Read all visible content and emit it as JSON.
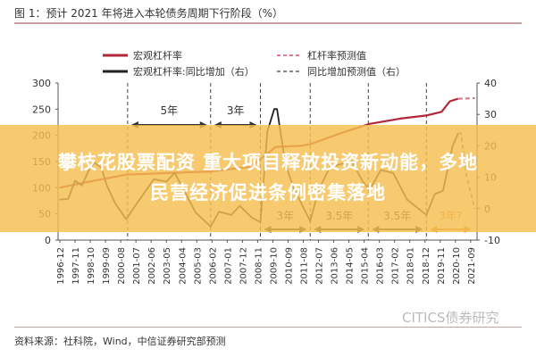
{
  "title": "图 1：预计 2021 年将进入本轮债务周期下行阶段（%）",
  "source": "资料来源：社科院，Wind，中信证券研究部预测",
  "watermark": "CITICS债券研究",
  "banner": {
    "line1": "攀枝花股票配资 重大项目释放投资新动能，多地",
    "line2": "民营经济促进条例密集落地",
    "color": "#f5be50"
  },
  "chart_data": {
    "type": "line",
    "title": "预计 2021 年将进入本轮债务周期下行阶段（%）",
    "x_ticks": [
      "1996-12",
      "1997-11",
      "1998-10",
      "1999-09",
      "2000-08",
      "2001-07",
      "2002-06",
      "2003-05",
      "2004-04",
      "2005-03",
      "2006-02",
      "2007-01",
      "2007-12",
      "2008-11",
      "2009-10",
      "2010-09",
      "2011-08",
      "2012-07",
      "2013-06",
      "2014-05",
      "2015-04",
      "2016-03",
      "2017-02",
      "2018-01",
      "2018-12",
      "2019-11",
      "2020-10",
      "2021-09"
    ],
    "y_left": {
      "range": [
        0,
        300
      ],
      "ticks": [
        "300",
        "250",
        "200",
        "150",
        "100",
        "50",
        "0"
      ]
    },
    "y_right": {
      "range": [
        -10,
        40
      ],
      "ticks": [
        "40",
        "30",
        "20",
        "10",
        "0",
        "-10"
      ]
    },
    "legend": {
      "placement": "top",
      "entries": [
        "宏观杠杆率",
        "杠杆率预测值",
        "宏观杠杆率:同比增加（右）",
        "同比增加预测值（右）"
      ]
    },
    "series": [
      {
        "name": "宏观杠杆率",
        "axis": "left",
        "color": "#b0283a",
        "style": "solid",
        "points": [
          [
            "1996-12",
            100
          ],
          [
            "1998-06",
            110
          ],
          [
            "2000-12",
            125
          ],
          [
            "2003-06",
            128
          ],
          [
            "2006-01",
            131
          ],
          [
            "2008-06",
            140
          ],
          [
            "2009-06",
            165
          ],
          [
            "2009-12",
            178
          ],
          [
            "2011-06",
            180
          ],
          [
            "2012-01",
            183
          ],
          [
            "2013-12",
            205
          ],
          [
            "2015-08",
            222
          ],
          [
            "2017-06",
            232
          ],
          [
            "2019-01",
            238
          ],
          [
            "2019-12",
            245
          ],
          [
            "2020-06",
            265
          ],
          [
            "2020-12",
            270
          ]
        ]
      },
      {
        "name": "杠杆率预测值",
        "axis": "left",
        "color": "#e07a90",
        "style": "dashed",
        "points": [
          [
            "2020-12",
            270
          ],
          [
            "2021-12",
            271
          ]
        ]
      },
      {
        "name": "宏观杠杆率:同比增加（右）",
        "axis": "right",
        "color": "#222222",
        "style": "solid",
        "points": [
          [
            "1996-12",
            2.9
          ],
          [
            "1997-06",
            3.1
          ],
          [
            "1997-11",
            8.9
          ],
          [
            "1998-04",
            7.4
          ],
          [
            "1998-09",
            12.3
          ],
          [
            "1999-01",
            14.6
          ],
          [
            "1999-06",
            13.1
          ],
          [
            "1999-10",
            7.4
          ],
          [
            "2000-04",
            1.7
          ],
          [
            "2000-12",
            -3.4
          ],
          [
            "2001-05",
            0
          ],
          [
            "2002-08",
            9.4
          ],
          [
            "2003-05",
            8.6
          ],
          [
            "2003-11",
            11.4
          ],
          [
            "2004-06",
            5.7
          ],
          [
            "2005-02",
            -1.1
          ],
          [
            "2006-01",
            -5.7
          ],
          [
            "2006-07",
            -1
          ],
          [
            "2007-04",
            -2
          ],
          [
            "2007-10",
            0.9
          ],
          [
            "2008-07",
            -2.9
          ],
          [
            "2009-01",
            -4.3
          ],
          [
            "2009-06",
            24.6
          ],
          [
            "2009-11",
            31.7
          ],
          [
            "2010-01",
            31.7
          ],
          [
            "2010-07",
            14.3
          ],
          [
            "2011-01",
            6.6
          ],
          [
            "2012-01",
            -4
          ],
          [
            "2012-07",
            5.7
          ],
          [
            "2013-03",
            13.1
          ],
          [
            "2013-12",
            14.3
          ],
          [
            "2014-07",
            15.1
          ],
          [
            "2015-03",
            8.6
          ],
          [
            "2015-08",
            6
          ],
          [
            "2016-04",
            12.3
          ],
          [
            "2017-01",
            11.4
          ],
          [
            "2017-11",
            2.9
          ],
          [
            "2019-01",
            -2
          ],
          [
            "2019-07",
            4.6
          ],
          [
            "2020-01",
            5.7
          ],
          [
            "2020-08",
            20
          ],
          [
            "2020-12",
            24
          ]
        ]
      },
      {
        "name": "同比增加预测值（右）",
        "axis": "right",
        "color": "#888888",
        "style": "dashed",
        "points": [
          [
            "2020-12",
            24
          ],
          [
            "2021-02",
            24
          ],
          [
            "2021-06",
            10.3
          ],
          [
            "2021-12",
            0
          ]
        ]
      }
    ],
    "phase_markers": [
      "2001-01",
      "2006-01",
      "2009-01",
      "2012-01",
      "2015-07",
      "2019-01"
    ],
    "annotations": [
      {
        "label": "5年",
        "from": "2001-01",
        "to": "2006-01",
        "row": "top",
        "color": "#333333"
      },
      {
        "label": "3年",
        "from": "2006-01",
        "to": "2009-01",
        "row": "top",
        "color": "#333333"
      },
      {
        "label": "3年",
        "from": "2009-01",
        "to": "2012-01",
        "row": "bottom",
        "color": "#333333"
      },
      {
        "label": "3.5年",
        "from": "2012-01",
        "to": "2015-07",
        "row": "bottom",
        "color": "#333333"
      },
      {
        "label": "3.5年",
        "from": "2015-07",
        "to": "2019-01",
        "row": "bottom",
        "color": "#333333"
      },
      {
        "label": "3年?",
        "from": "2019-01",
        "to": "2021-12",
        "row": "bottom",
        "color": "#e08a30"
      }
    ],
    "grid": false
  }
}
